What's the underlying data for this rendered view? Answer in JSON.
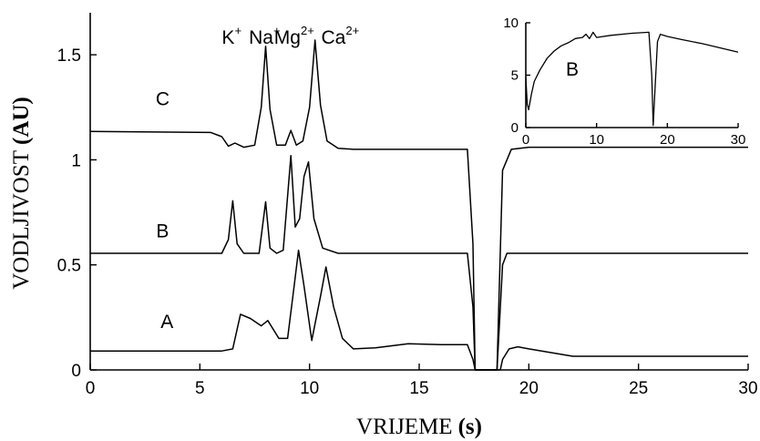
{
  "chart_data": [
    {
      "type": "line",
      "title": "",
      "xlabel_text": "VRIJEME",
      "xlabel_unit": "(s)",
      "ylabel_text": "VODLJIVOST",
      "ylabel_unit": "(AU)",
      "xlim": [
        0,
        30
      ],
      "ylim": [
        0,
        1.7
      ],
      "xticks": [
        "0",
        "5",
        "10",
        "15",
        "20",
        "25",
        "30"
      ],
      "yticks": [
        "0",
        "0.5",
        "1",
        "1.5"
      ],
      "grid": false,
      "peak_labels": [
        {
          "base": "K",
          "sup": "+"
        },
        {
          "base": "Na",
          "sup": "+"
        },
        {
          "base": "Mg",
          "sup": "2+"
        },
        {
          "base": "Ca",
          "sup": "2+"
        }
      ],
      "series": [
        {
          "name": "C",
          "x": [
            0,
            5.5,
            6.0,
            6.3,
            6.6,
            7.0,
            7.5,
            7.8,
            8.0,
            8.2,
            8.5,
            8.9,
            9.15,
            9.4,
            9.7,
            10.0,
            10.25,
            10.5,
            10.8,
            11.3,
            12,
            15,
            17.2,
            17.45,
            17.55,
            18.0,
            18.55,
            18.8,
            19.2,
            20,
            25,
            30
          ],
          "y": [
            1.135,
            1.13,
            1.11,
            1.065,
            1.08,
            1.06,
            1.07,
            1.25,
            1.54,
            1.24,
            1.07,
            1.07,
            1.14,
            1.07,
            1.09,
            1.25,
            1.57,
            1.26,
            1.09,
            1.055,
            1.05,
            1.05,
            1.05,
            0.6,
            0.0,
            0.0,
            0.0,
            0.95,
            1.05,
            1.06,
            1.06,
            1.06
          ]
        },
        {
          "name": "B",
          "x": [
            0,
            6.0,
            6.3,
            6.5,
            6.7,
            7.0,
            7.7,
            8.0,
            8.2,
            8.5,
            8.8,
            9.15,
            9.35,
            9.55,
            9.75,
            9.95,
            10.2,
            10.6,
            11.3,
            12,
            15,
            17.2,
            17.45,
            17.55,
            18.0,
            18.55,
            18.8,
            19.0,
            20,
            25,
            30
          ],
          "y": [
            0.555,
            0.555,
            0.62,
            0.805,
            0.6,
            0.555,
            0.555,
            0.8,
            0.58,
            0.555,
            0.57,
            1.02,
            0.68,
            0.72,
            0.92,
            0.99,
            0.72,
            0.58,
            0.555,
            0.555,
            0.555,
            0.555,
            0.3,
            0.0,
            0.0,
            0.0,
            0.5,
            0.555,
            0.555,
            0.555,
            0.555
          ]
        },
        {
          "name": "A",
          "x": [
            0,
            6.0,
            6.5,
            6.85,
            7.3,
            7.8,
            8.1,
            8.6,
            9.0,
            9.3,
            9.5,
            9.75,
            10.1,
            10.5,
            10.75,
            11.1,
            11.5,
            12,
            13,
            14.5,
            16,
            17.2,
            17.45,
            17.55,
            18.0,
            18.7,
            18.8,
            19.1,
            19.5,
            20,
            22,
            30
          ],
          "y": [
            0.09,
            0.09,
            0.1,
            0.265,
            0.245,
            0.21,
            0.235,
            0.15,
            0.15,
            0.4,
            0.57,
            0.4,
            0.14,
            0.35,
            0.49,
            0.3,
            0.15,
            0.1,
            0.105,
            0.125,
            0.12,
            0.12,
            0.05,
            0.0,
            0.0,
            0.0,
            0.05,
            0.1,
            0.11,
            0.1,
            0.065,
            0.065
          ]
        }
      ]
    },
    {
      "type": "line",
      "title": "B",
      "xlim": [
        0,
        30
      ],
      "ylim": [
        0,
        10
      ],
      "xticks": [
        "0",
        "10",
        "20",
        "30"
      ],
      "yticks": [
        "0",
        "5",
        "10"
      ],
      "grid": false,
      "series": [
        {
          "name": "B",
          "x": [
            0,
            0.2,
            0.4,
            0.8,
            1.2,
            2,
            3,
            4,
            5,
            6,
            7,
            8,
            8.5,
            9,
            9.5,
            10,
            12,
            15,
            17.4,
            17.8,
            18.0,
            18.2,
            18.6,
            19,
            20,
            22,
            25,
            30
          ],
          "y": [
            4.8,
            2.2,
            1.7,
            3.2,
            4.4,
            5.5,
            6.6,
            7.3,
            7.8,
            8.1,
            8.5,
            8.6,
            8.9,
            8.5,
            9.1,
            8.6,
            8.8,
            9.0,
            9.1,
            5,
            0.2,
            3,
            8.2,
            8.9,
            8.7,
            8.4,
            8.0,
            7.2
          ]
        }
      ]
    }
  ]
}
